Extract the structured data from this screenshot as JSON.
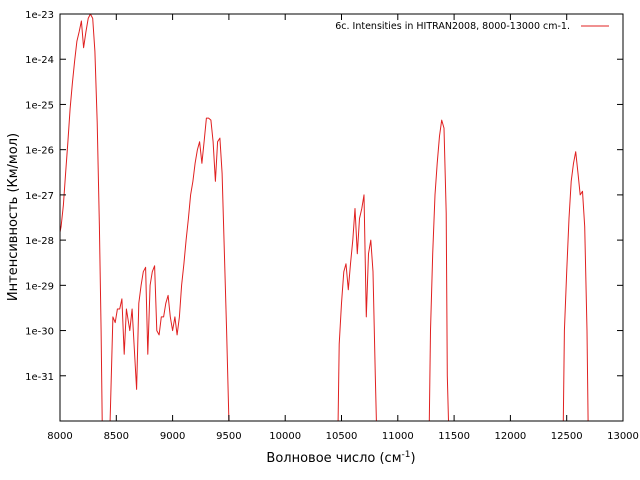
{
  "chart_data": {
    "type": "line",
    "title": "",
    "xlabel": "Волновое число (см",
    "xlabel_sup": "-1",
    "xlabel_tail": ")",
    "ylabel": "Интенсивность (Км/мол)",
    "xlim": [
      8000,
      13000
    ],
    "ylim": [
      1e-32,
      1e-23
    ],
    "y_scale": "log",
    "x_ticks": [
      8000,
      8500,
      9000,
      9500,
      10000,
      10500,
      11000,
      11500,
      12000,
      12500,
      13000
    ],
    "x_tick_labels": [
      "8000",
      "8500",
      "9000",
      "9500",
      "10000",
      "10500",
      "11000",
      "11500",
      "12000",
      "12500",
      "13000"
    ],
    "y_ticks": [
      1e-31,
      1e-30,
      1e-29,
      1e-28,
      1e-27,
      1e-26,
      1e-25,
      1e-24,
      1e-23
    ],
    "y_tick_labels": [
      "1e-31",
      "1e-30",
      "1e-29",
      "1e-28",
      "1e-27",
      "1e-26",
      "1e-25",
      "1e-24",
      "1e-23"
    ],
    "grid": false,
    "legend_position": "top-right",
    "series": [
      {
        "name": "6c. Intensities in HITRAN2008, 8000-13000 cm-1.",
        "color": "#e02020",
        "segments": [
          [
            [
              8000,
              1.5e-28
            ],
            [
              8010,
              2e-28
            ],
            [
              8030,
              6e-28
            ],
            [
              8050,
              3e-27
            ],
            [
              8070,
              1.5e-26
            ],
            [
              8090,
              8e-26
            ],
            [
              8110,
              3e-25
            ],
            [
              8130,
              9e-25
            ],
            [
              8150,
              2.5e-24
            ],
            [
              8170,
              4e-24
            ],
            [
              8190,
              7e-24
            ],
            [
              8210,
              1.8e-24
            ],
            [
              8230,
              4e-24
            ],
            [
              8250,
              8e-24
            ],
            [
              8270,
              1.1e-23
            ],
            [
              8290,
              8e-24
            ],
            [
              8310,
              1.5e-24
            ],
            [
              8330,
              4e-26
            ],
            [
              8350,
              2e-28
            ],
            [
              8365,
              1e-30
            ],
            [
              8375,
              1e-32
            ]
          ],
          [
            [
              8445,
              1e-32
            ],
            [
              8455,
              8e-32
            ],
            [
              8470,
              2e-30
            ],
            [
              8490,
              1.5e-30
            ],
            [
              8510,
              3e-30
            ],
            [
              8530,
              3e-30
            ],
            [
              8550,
              5e-30
            ],
            [
              8570,
              3e-31
            ],
            [
              8590,
              3e-30
            ],
            [
              8620,
              1e-30
            ],
            [
              8640,
              3e-30
            ],
            [
              8660,
              4e-31
            ],
            [
              8680,
              5e-32
            ],
            [
              8700,
              4e-30
            ],
            [
              8720,
              1e-29
            ],
            [
              8740,
              2e-29
            ],
            [
              8760,
              2.5e-29
            ],
            [
              8780,
              3e-31
            ],
            [
              8800,
              1e-29
            ],
            [
              8820,
              2e-29
            ],
            [
              8840,
              2.7e-29
            ],
            [
              8860,
              1e-30
            ],
            [
              8880,
              8e-31
            ],
            [
              8900,
              2e-30
            ],
            [
              8920,
              2e-30
            ],
            [
              8940,
              4e-30
            ],
            [
              8960,
              6e-30
            ],
            [
              8980,
              2e-30
            ],
            [
              9000,
              1e-30
            ],
            [
              9020,
              2e-30
            ],
            [
              9040,
              8e-31
            ],
            [
              9060,
              2e-30
            ],
            [
              9080,
              1e-29
            ],
            [
              9100,
              3e-29
            ],
            [
              9120,
              1e-28
            ],
            [
              9140,
              3e-28
            ],
            [
              9160,
              1e-27
            ],
            [
              9180,
              2e-27
            ],
            [
              9200,
              5e-27
            ],
            [
              9220,
              1e-26
            ],
            [
              9240,
              1.5e-26
            ],
            [
              9260,
              5e-27
            ],
            [
              9280,
              1.5e-26
            ],
            [
              9300,
              5e-26
            ],
            [
              9320,
              5e-26
            ],
            [
              9340,
              4.5e-26
            ],
            [
              9360,
              1.5e-26
            ],
            [
              9380,
              2e-27
            ],
            [
              9400,
              1.5e-26
            ],
            [
              9420,
              1.8e-26
            ],
            [
              9440,
              3e-27
            ],
            [
              9460,
              5e-29
            ],
            [
              9480,
              1e-30
            ],
            [
              9500,
              1e-32
            ]
          ],
          [
            [
              10470,
              1e-32
            ],
            [
              10480,
              5e-31
            ],
            [
              10500,
              4e-30
            ],
            [
              10520,
              2e-29
            ],
            [
              10540,
              3e-29
            ],
            [
              10560,
              8e-30
            ],
            [
              10580,
              3e-29
            ],
            [
              10600,
              1e-28
            ],
            [
              10620,
              5e-28
            ],
            [
              10640,
              5e-29
            ],
            [
              10660,
              3e-28
            ],
            [
              10680,
              5e-28
            ],
            [
              10700,
              1e-27
            ],
            [
              10720,
              2e-30
            ],
            [
              10740,
              5e-29
            ],
            [
              10760,
              1e-28
            ],
            [
              10780,
              2e-29
            ],
            [
              10800,
              1e-31
            ],
            [
              10810,
              1e-32
            ]
          ],
          [
            [
              11280,
              1e-32
            ],
            [
              11290,
              1e-30
            ],
            [
              11310,
              5e-29
            ],
            [
              11330,
              1e-27
            ],
            [
              11350,
              5e-27
            ],
            [
              11370,
              2e-26
            ],
            [
              11390,
              4.5e-26
            ],
            [
              11410,
              3e-26
            ],
            [
              11430,
              4e-28
            ],
            [
              11440,
              1e-31
            ],
            [
              11450,
              1e-32
            ]
          ],
          [
            [
              12470,
              1e-32
            ],
            [
              12480,
              1e-30
            ],
            [
              12500,
              2e-29
            ],
            [
              12520,
              3e-28
            ],
            [
              12540,
              2e-27
            ],
            [
              12560,
              5e-27
            ],
            [
              12580,
              9e-27
            ],
            [
              12600,
              3e-27
            ],
            [
              12620,
              1e-27
            ],
            [
              12640,
              1.2e-27
            ],
            [
              12660,
              2e-28
            ],
            [
              12680,
              1e-30
            ],
            [
              12690,
              1e-32
            ]
          ]
        ]
      }
    ]
  }
}
